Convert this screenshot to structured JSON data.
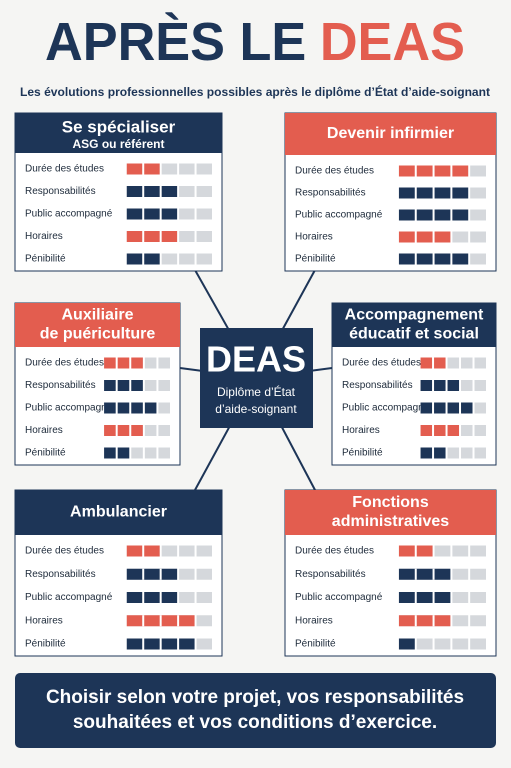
{
  "header": {
    "title_part1": "APRÈS LE",
    "title_part2": "DEAS",
    "subtitle": "Les évolutions professionnelles possibles après le diplôme d’État d’aide-soignant"
  },
  "colors": {
    "navy": "#1d3557",
    "red": "#e35d4f",
    "empty": "#d5d8dc"
  },
  "segments": 5,
  "criteria": [
    {
      "label": "Durée des études",
      "color": "#e35d4f"
    },
    {
      "label": "Responsabilités",
      "color": "#1d3557"
    },
    {
      "label": "Public accompagné",
      "color": "#1d3557"
    },
    {
      "label": "Horaires",
      "color": "#e35d4f"
    },
    {
      "label": "Pénibilité",
      "color": "#1d3557"
    }
  ],
  "center": {
    "title": "DEAS",
    "lines": [
      "Diplôme d’État",
      "d’aide-soignant"
    ]
  },
  "cards": [
    {
      "title_lines": [
        "Se spécialiser"
      ],
      "subtitle": "ASG ou référent",
      "header_color": "#1d3557",
      "ratings": [
        2,
        3,
        3,
        3,
        2
      ]
    },
    {
      "title_lines": [
        "Devenir infirmier"
      ],
      "header_color": "#e35d4f",
      "ratings": [
        4,
        4,
        4,
        3,
        4
      ]
    },
    {
      "title_lines": [
        "Auxiliaire",
        "de puériculture"
      ],
      "header_color": "#e35d4f",
      "ratings": [
        3,
        3,
        4,
        3,
        2
      ]
    },
    {
      "title_lines": [
        "Accompagnement",
        "éducatif et social"
      ],
      "header_color": "#1d3557",
      "ratings": [
        2,
        3,
        4,
        3,
        2
      ]
    },
    {
      "title_lines": [
        "Ambulancier"
      ],
      "header_color": "#1d3557",
      "ratings": [
        2,
        3,
        3,
        4,
        4
      ]
    },
    {
      "title_lines": [
        "Fonctions",
        "administratives"
      ],
      "header_color": "#e35d4f",
      "ratings": [
        2,
        3,
        3,
        3,
        1
      ]
    }
  ],
  "footer": {
    "lines": [
      "Choisir selon votre projet, vos responsabilités",
      "souhaitées et vos conditions d’exercice."
    ]
  }
}
